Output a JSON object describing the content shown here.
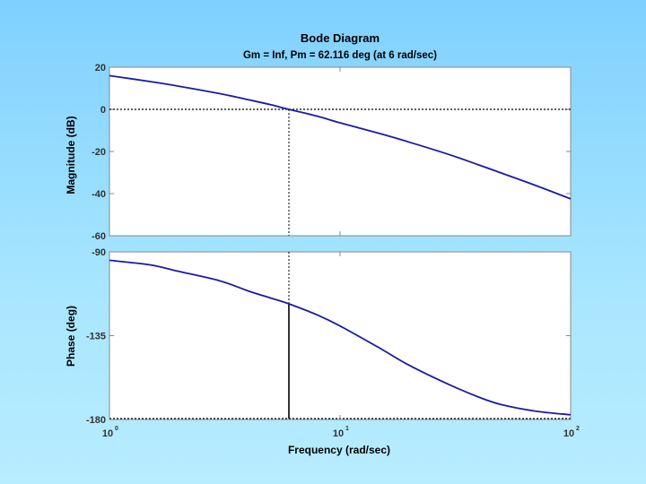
{
  "chart_data": {
    "type": "line",
    "title": "Bode Diagram",
    "subtitle": "Gm = Inf,  Pm = 62.116 deg (at 6 rad/sec)",
    "xlabel": "Frequency (rad/sec)",
    "x_scale": "log",
    "xlim": [
      1,
      100
    ],
    "x_ticks": [
      {
        "base": "10",
        "exp": "0",
        "value": 1
      },
      {
        "base": "10",
        "exp": "1",
        "value": 10
      },
      {
        "base": "10",
        "exp": "2",
        "value": 100
      }
    ],
    "crossover_frequency": 6,
    "magnitude": {
      "ylabel": "Magnitude (dB)",
      "ylim": [
        -60,
        20
      ],
      "y_ticks": [
        "20",
        "0",
        "-20",
        "-40",
        "-60"
      ],
      "reference_line": 0,
      "series": {
        "x": [
          1,
          1.5,
          2,
          3,
          4,
          5,
          6,
          8,
          10,
          15,
          20,
          30,
          40,
          50,
          70,
          100
        ],
        "y": [
          16,
          13.2,
          11,
          7.5,
          4.6,
          2.2,
          0,
          -3.3,
          -6.4,
          -11.6,
          -15.6,
          -21.6,
          -26.4,
          -30.2,
          -36,
          -42.5
        ]
      }
    },
    "phase": {
      "ylabel": "Phase (deg)",
      "ylim": [
        -180,
        -90
      ],
      "y_ticks": [
        "-90",
        "-135",
        "-180"
      ],
      "reference_line": -180,
      "phase_margin_deg": 62.116,
      "series": {
        "x": [
          1,
          1.5,
          2,
          3,
          4,
          5,
          6,
          8,
          10,
          15,
          20,
          30,
          40,
          50,
          70,
          100
        ],
        "y": [
          -94.5,
          -97,
          -100.5,
          -105.5,
          -111,
          -114.8,
          -117.9,
          -124,
          -129.8,
          -142,
          -151,
          -161.5,
          -168,
          -172,
          -175.5,
          -177.5
        ]
      }
    }
  }
}
